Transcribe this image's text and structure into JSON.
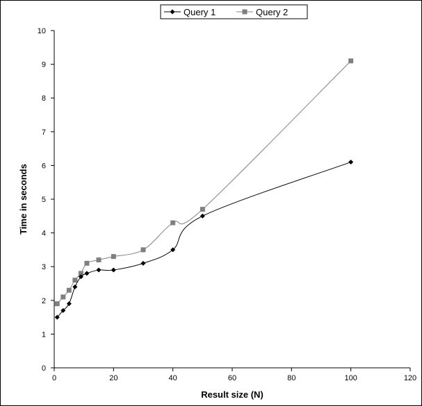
{
  "chart_data": {
    "type": "line",
    "xlabel": "Result size (N)",
    "ylabel": "Time in seconds",
    "xlim": [
      0,
      120
    ],
    "ylim": [
      0,
      10
    ],
    "x_ticks": [
      0,
      20,
      40,
      60,
      80,
      100,
      120
    ],
    "y_ticks": [
      0,
      1,
      2,
      3,
      4,
      5,
      6,
      7,
      8,
      9,
      10
    ],
    "grid": false,
    "legend_position": "top-center",
    "smoothed": true,
    "series": [
      {
        "name": "Query 1",
        "color": "#000000",
        "marker": "diamond",
        "x": [
          1,
          3,
          5,
          7,
          9,
          11,
          15,
          20,
          30,
          40,
          50,
          100
        ],
        "y": [
          1.5,
          1.7,
          1.9,
          2.4,
          2.7,
          2.8,
          2.9,
          2.9,
          3.1,
          3.5,
          4.5,
          6.1
        ]
      },
      {
        "name": "Query 2",
        "color": "#808080",
        "marker": "square",
        "x": [
          1,
          3,
          5,
          7,
          9,
          11,
          15,
          20,
          30,
          40,
          50,
          100
        ],
        "y": [
          1.9,
          2.1,
          2.3,
          2.6,
          2.8,
          3.1,
          3.2,
          3.3,
          3.5,
          4.3,
          4.7,
          9.1
        ]
      }
    ]
  }
}
